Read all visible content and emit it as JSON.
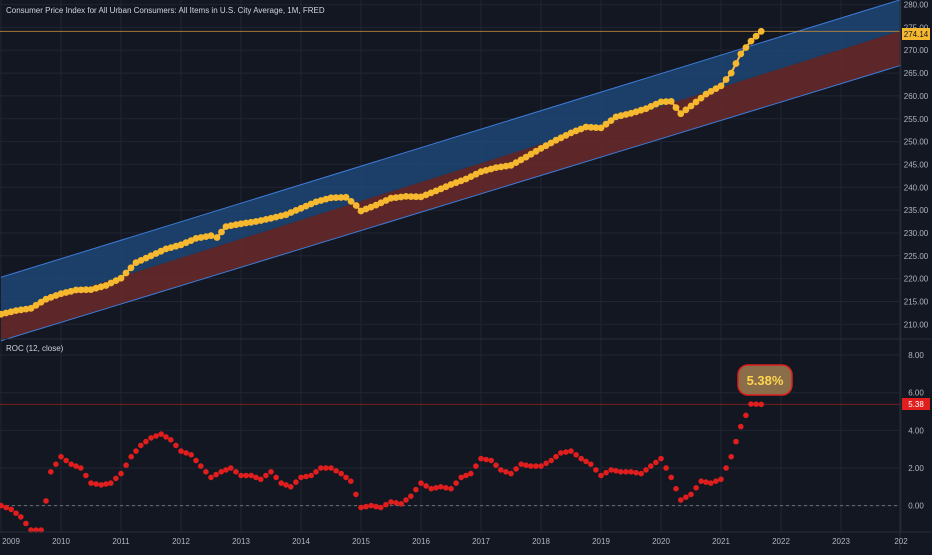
{
  "colors": {
    "background": "#131722",
    "grid": "#1f2533",
    "axis_text": "#b2b5be",
    "cpi_line": "#ffb74d",
    "cpi_dot": "#f5b82e",
    "channel_upper_fill": "#1e4a7a",
    "channel_lower_fill": "#6b2a2a",
    "channel_line": "#3d7ad6",
    "roc_dot": "#e01e1e",
    "roc_badge_bg": "#8a6e4a",
    "roc_badge_text": "#ffd54f",
    "price_line": "#c98e3a",
    "zero_line": "#6b6f7a",
    "label_red": "#e01e1e",
    "label_orange": "#f5b82e"
  },
  "header": {
    "title": "Consumer Price Index for All Urban Consumers: All Items in U.S. City Average, 1M, FRED"
  },
  "roc_pane": {
    "title": "ROC (12, close)",
    "badge": "5.38%",
    "last_label": "5.38"
  },
  "price_pane": {
    "last_label": "274.14"
  },
  "chart_data": [
    {
      "type": "scatter",
      "ylim": [
        207,
        281
      ],
      "y_ticks": [
        "210.00",
        "215.00",
        "220.00",
        "225.00",
        "230.00",
        "235.00",
        "240.00",
        "245.00",
        "250.00",
        "255.00",
        "260.00",
        "265.00",
        "270.00",
        "275.00",
        "280.00"
      ],
      "last_value": 274.14,
      "channel": {
        "x": [
          2009.0,
          2024.0
        ],
        "upper": [
          220.3,
          281.1
        ],
        "mid": [
          212.1,
          274.3
        ],
        "lower": [
          206.4,
          266.7
        ]
      },
      "series": [
        {
          "values": [
            [
              2009.0,
              212.2
            ],
            [
              2009.25,
              213.0
            ],
            [
              2009.5,
              213.5
            ],
            [
              2009.75,
              215.5
            ],
            [
              2010.0,
              216.7
            ],
            [
              2010.25,
              217.5
            ],
            [
              2010.5,
              217.6
            ],
            [
              2010.75,
              218.5
            ],
            [
              2011.0,
              220.1
            ],
            [
              2011.25,
              223.5
            ],
            [
              2011.5,
              225.0
            ],
            [
              2011.75,
              226.5
            ],
            [
              2012.0,
              227.4
            ],
            [
              2012.25,
              228.8
            ],
            [
              2012.5,
              229.4
            ],
            [
              2012.6,
              229.0
            ],
            [
              2012.75,
              231.4
            ],
            [
              2013.0,
              232.0
            ],
            [
              2013.25,
              232.5
            ],
            [
              2013.5,
              233.2
            ],
            [
              2013.75,
              234.0
            ],
            [
              2014.0,
              235.4
            ],
            [
              2014.25,
              236.8
            ],
            [
              2014.5,
              237.7
            ],
            [
              2014.75,
              237.8
            ],
            [
              2014.92,
              236.0
            ],
            [
              2015.0,
              234.8
            ],
            [
              2015.25,
              236.1
            ],
            [
              2015.5,
              237.6
            ],
            [
              2015.75,
              238.0
            ],
            [
              2016.0,
              237.9
            ],
            [
              2016.25,
              239.2
            ],
            [
              2016.5,
              240.6
            ],
            [
              2016.75,
              241.8
            ],
            [
              2017.0,
              243.4
            ],
            [
              2017.25,
              244.3
            ],
            [
              2017.5,
              244.8
            ],
            [
              2017.75,
              246.6
            ],
            [
              2018.0,
              248.5
            ],
            [
              2018.25,
              250.3
            ],
            [
              2018.5,
              251.9
            ],
            [
              2018.75,
              253.2
            ],
            [
              2019.0,
              253.0
            ],
            [
              2019.25,
              255.4
            ],
            [
              2019.5,
              256.2
            ],
            [
              2019.75,
              257.2
            ],
            [
              2020.0,
              258.7
            ],
            [
              2020.17,
              258.8
            ],
            [
              2020.33,
              256.1
            ],
            [
              2020.5,
              257.8
            ],
            [
              2020.75,
              260.4
            ],
            [
              2021.0,
              262.2
            ],
            [
              2021.17,
              265.0
            ],
            [
              2021.33,
              269.2
            ],
            [
              2021.5,
              272.0
            ],
            [
              2021.67,
              274.14
            ]
          ]
        }
      ]
    },
    {
      "type": "scatter",
      "title": "ROC (12, close)",
      "ylim": [
        -1.4,
        8.8
      ],
      "y_ticks": [
        "0.00",
        "2.00",
        "4.00",
        "6.00",
        "8.00"
      ],
      "last_value": 5.38,
      "series": [
        {
          "values": [
            [
              2009.0,
              0.0
            ],
            [
              2009.17,
              -0.2
            ],
            [
              2009.33,
              -0.6
            ],
            [
              2009.5,
              -1.3
            ],
            [
              2009.67,
              -1.3
            ],
            [
              2009.83,
              1.8
            ],
            [
              2010.0,
              2.6
            ],
            [
              2010.17,
              2.2
            ],
            [
              2010.33,
              2.0
            ],
            [
              2010.5,
              1.2
            ],
            [
              2010.67,
              1.1
            ],
            [
              2010.83,
              1.2
            ],
            [
              2011.0,
              1.7
            ],
            [
              2011.17,
              2.6
            ],
            [
              2011.33,
              3.2
            ],
            [
              2011.5,
              3.6
            ],
            [
              2011.67,
              3.8
            ],
            [
              2011.83,
              3.5
            ],
            [
              2012.0,
              2.9
            ],
            [
              2012.17,
              2.7
            ],
            [
              2012.33,
              2.1
            ],
            [
              2012.5,
              1.5
            ],
            [
              2012.67,
              1.8
            ],
            [
              2012.83,
              2.0
            ],
            [
              2013.0,
              1.6
            ],
            [
              2013.17,
              1.6
            ],
            [
              2013.33,
              1.4
            ],
            [
              2013.5,
              1.8
            ],
            [
              2013.67,
              1.2
            ],
            [
              2013.83,
              1.0
            ],
            [
              2014.0,
              1.5
            ],
            [
              2014.17,
              1.6
            ],
            [
              2014.33,
              2.0
            ],
            [
              2014.5,
              2.0
            ],
            [
              2014.67,
              1.7
            ],
            [
              2014.83,
              1.3
            ],
            [
              2015.0,
              -0.1
            ],
            [
              2015.17,
              0.0
            ],
            [
              2015.33,
              -0.1
            ],
            [
              2015.5,
              0.2
            ],
            [
              2015.67,
              0.1
            ],
            [
              2015.83,
              0.5
            ],
            [
              2016.0,
              1.2
            ],
            [
              2016.17,
              0.9
            ],
            [
              2016.33,
              1.0
            ],
            [
              2016.5,
              0.9
            ],
            [
              2016.67,
              1.5
            ],
            [
              2016.83,
              1.7
            ],
            [
              2017.0,
              2.5
            ],
            [
              2017.17,
              2.4
            ],
            [
              2017.33,
              1.9
            ],
            [
              2017.5,
              1.7
            ],
            [
              2017.67,
              2.2
            ],
            [
              2017.83,
              2.1
            ],
            [
              2018.0,
              2.1
            ],
            [
              2018.17,
              2.4
            ],
            [
              2018.33,
              2.8
            ],
            [
              2018.5,
              2.9
            ],
            [
              2018.67,
              2.5
            ],
            [
              2018.83,
              2.2
            ],
            [
              2019.0,
              1.6
            ],
            [
              2019.17,
              1.9
            ],
            [
              2019.33,
              1.8
            ],
            [
              2019.5,
              1.8
            ],
            [
              2019.67,
              1.7
            ],
            [
              2019.83,
              2.1
            ],
            [
              2020.0,
              2.5
            ],
            [
              2020.17,
              1.5
            ],
            [
              2020.33,
              0.3
            ],
            [
              2020.5,
              0.6
            ],
            [
              2020.67,
              1.3
            ],
            [
              2020.83,
              1.2
            ],
            [
              2021.0,
              1.4
            ],
            [
              2021.17,
              2.6
            ],
            [
              2021.33,
              4.2
            ],
            [
              2021.5,
              5.4
            ],
            [
              2021.67,
              5.38
            ]
          ]
        }
      ]
    }
  ],
  "x_axis": {
    "min": 2009.0,
    "max": 2024.0,
    "ticks": [
      "2009",
      "2010",
      "2011",
      "2012",
      "2013",
      "2014",
      "2015",
      "2016",
      "2017",
      "2018",
      "2019",
      "2020",
      "2021",
      "2022",
      "2023",
      "202"
    ]
  }
}
